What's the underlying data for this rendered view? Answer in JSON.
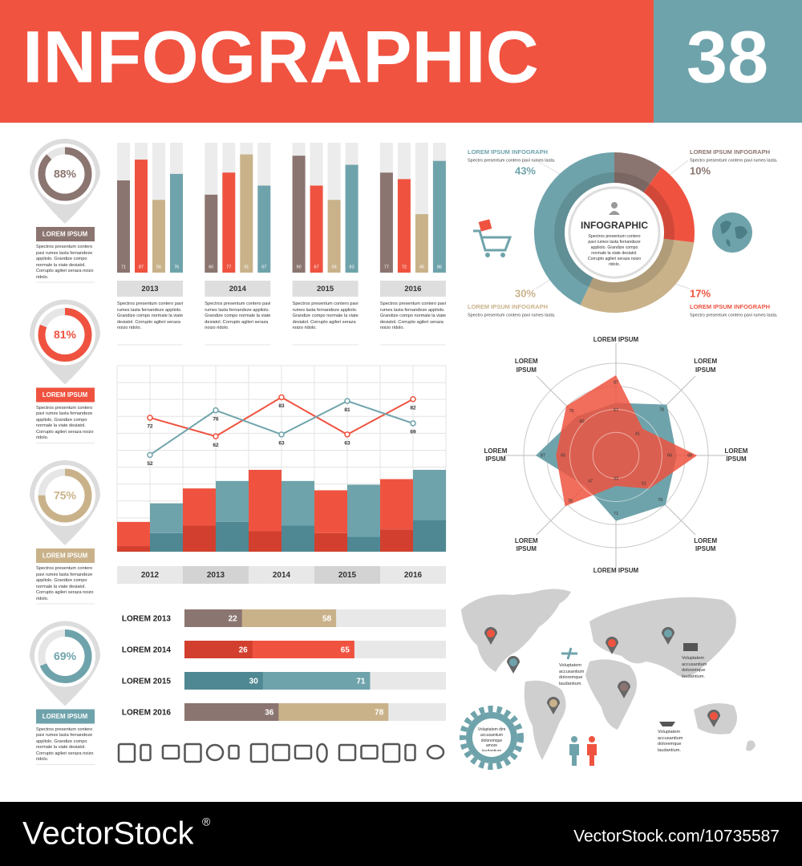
{
  "header": {
    "title": "INFOGRAPHIC",
    "number": "38"
  },
  "chart_data": [
    {
      "type": "gauge",
      "ylim": [
        0,
        100
      ],
      "values": [
        88,
        81,
        75,
        69
      ],
      "value_labels": [
        "88%",
        "81%",
        "75%",
        "69%"
      ],
      "colors": [
        "#8b7570",
        "#ef5340",
        "#c9b28a",
        "#6fa3ab"
      ],
      "labels": [
        "LOREM IPSUM",
        "LOREM IPSUM",
        "LOREM IPSUM",
        "LOREM IPSUM"
      ],
      "texts": [
        "Spectros presentum contero pavi rumes lasta fernandeze appliolo. Grandize compo normale la viate desiatol. Corrupto agileri seraza noizo ridolo.",
        "Spectros presentum contero pavi rumes lasta fernandeze appliolo. Grandize compo normale la viate desiatol. Corrupto agileri seraza noizo ridolo.",
        "Spectros presentum contero pavi rumes lasta fernandeze appliolo. Grandize compo normale la viate desiatol. Corrupto agileri seraza noizo ridolo.",
        "Spectros presentum contero pavi rumes lasta fernandeze appliolo. Grandize compo normale la viate desiatol. Corrupto agileri seraza noizo ridolo."
      ]
    },
    {
      "type": "column-groups",
      "ylim": [
        0,
        100
      ],
      "categories": [
        "2013",
        "2014",
        "2015",
        "2016"
      ],
      "series": [
        {
          "color": "#8b7570",
          "values": [
            71,
            60,
            90,
            77
          ]
        },
        {
          "color": "#ef5340",
          "values": [
            87,
            77,
            67,
            72
          ]
        },
        {
          "color": "#c9b28a",
          "values": [
            56,
            91,
            56,
            45
          ]
        },
        {
          "color": "#6fa3ab",
          "values": [
            76,
            67,
            83,
            86
          ]
        }
      ],
      "descriptions": [
        "Spectros presentum contero pavi rumes lasta fernandeze appliolo. Grandize compo normale la viate desiatol. Corrupto agileri seraza noizo ridolo.",
        "Spectros presentum contero pavi rumes lasta fernandeze appliolo. Grandize compo normale la viate desiatol. Corrupto agileri seraza noizo ridolo.",
        "Spectros presentum contero pavi rumes lasta fernandeze appliolo. Grandize compo normale la viate desiatol. Corrupto agileri seraza noizo ridolo.",
        "Spectros presentum contero pavi rumes lasta fernandeze appliolo. Grandize compo normale la viate desiatol. Corrupto agileri seraza noizo ridolo."
      ]
    },
    {
      "type": "combo",
      "ylim": [
        0,
        100
      ],
      "grid": true,
      "categories": [
        "2012",
        "2013",
        "2014",
        "2015",
        "2016"
      ],
      "bar_groups": [
        {
          "segments": [
            {
              "color": "#d23f2e",
              "values": [
                3,
                14,
                11,
                10,
                12
              ]
            },
            {
              "color": "#ef5340",
              "values": [
                13,
                20,
                33,
                23,
                27
              ]
            }
          ]
        },
        {
          "segments": [
            {
              "color": "#4f8892",
              "values": [
                10,
                16,
                14,
                8,
                17
              ]
            },
            {
              "color": "#6fa3ab",
              "values": [
                16,
                22,
                24,
                28,
                27
              ]
            }
          ]
        }
      ],
      "lines": [
        {
          "color": "#ef5340",
          "values": [
            72,
            62,
            83,
            63,
            82
          ]
        },
        {
          "color": "#6fa3ab",
          "values": [
            52,
            76,
            63,
            81,
            69
          ]
        }
      ]
    },
    {
      "type": "overlap-bar",
      "xlim": [
        0,
        100
      ],
      "categories": [
        "LOREM 2013",
        "LOREM 2014",
        "LOREM 2015",
        "LOREM 2016"
      ],
      "series": [
        {
          "values": [
            58,
            65,
            71,
            78
          ],
          "colors": [
            "#c9b28a",
            "#ef5340",
            "#6fa3ab",
            "#c9b28a"
          ]
        },
        {
          "values": [
            22,
            26,
            30,
            36
          ],
          "colors": [
            "#8b7570",
            "#d23f2e",
            "#4f8892",
            "#8b7570"
          ]
        }
      ]
    },
    {
      "type": "donut",
      "title": "INFOGRAPHIC",
      "text": "Spectros presentum contero pavi rumes lasta fernandeze appliolo. Grandize compo normale la viate desiatol. Corrupto agileri seraza noizo ridolo.",
      "values": [
        10,
        17,
        30,
        43
      ],
      "value_labels": [
        "10%",
        "17%",
        "30%",
        "43%"
      ],
      "colors": [
        "#8b7570",
        "#ef5340",
        "#c9b28a",
        "#6fa3ab"
      ],
      "labels": [
        "LOREM IPSUM INFOGRAPH",
        "LOREM IPSUM INFOGRAPH",
        "LOREM IPSUM INFOGRAPH",
        "LOREM IPSUM INFOGRAPH"
      ],
      "texts": [
        "Spectro presentum contero pavi rumes lasta.",
        "Spectro presentum contero pavi rumes lasta.",
        "Spectro presentum contero pavi rumes lasta.",
        "Spectro presentum contero pavi rumes lasta."
      ]
    },
    {
      "type": "radar",
      "rlim": [
        0,
        100
      ],
      "categories": [
        "LOREM IPSUM",
        "LOREM IPSUM",
        "LOREM IPSUM",
        "LOREM IPSUM",
        "LOREM IPSUM",
        "LOREM IPSUM",
        "LOREM IPSUM",
        "LOREM IPSUM"
      ],
      "series": [
        {
          "color": "#6fa3ab",
          "values": [
            57,
            78,
            66,
            76,
            71,
            47,
            87,
            60
          ]
        },
        {
          "color": "#ef5340",
          "values": [
            87,
            41,
            88,
            51,
            33,
            78,
            65,
            76
          ]
        }
      ]
    }
  ],
  "map": {
    "notes": [
      "Voluptatem accusantium doloremque laudantium.",
      "Voluptatem accusantium doloremque laudantium.",
      "Voluptatem accusantium doloremque laudantium."
    ],
    "gear": "Voluptatem dim accusantium doloremque amore laudantium"
  },
  "footer": {
    "brand": "VectorStock",
    "mark": "®",
    "url": "VectorStock.com/10735587"
  }
}
